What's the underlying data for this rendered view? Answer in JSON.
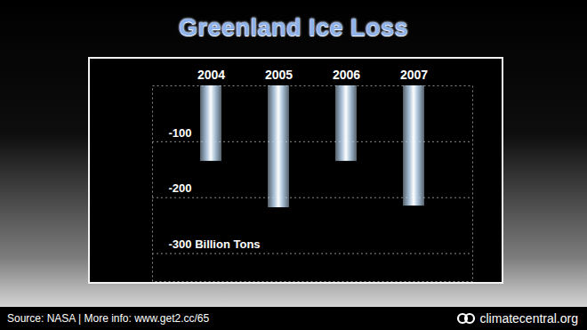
{
  "chart_data": {
    "type": "bar",
    "title": "Greenland Ice Loss",
    "categories": [
      "2004",
      "2005",
      "2006",
      "2007"
    ],
    "values": [
      -135,
      -218,
      -135,
      -215
    ],
    "color": "#bcd6ee",
    "ylim": [
      -350,
      0
    ],
    "yticks": [
      -100,
      -200,
      {
        "value": -300,
        "label": "-300 Billion Tons"
      }
    ],
    "grid": true,
    "annotations": [
      "Source: NASA | More info: www.get2.cc/65",
      "climatecentral.org"
    ]
  }
}
